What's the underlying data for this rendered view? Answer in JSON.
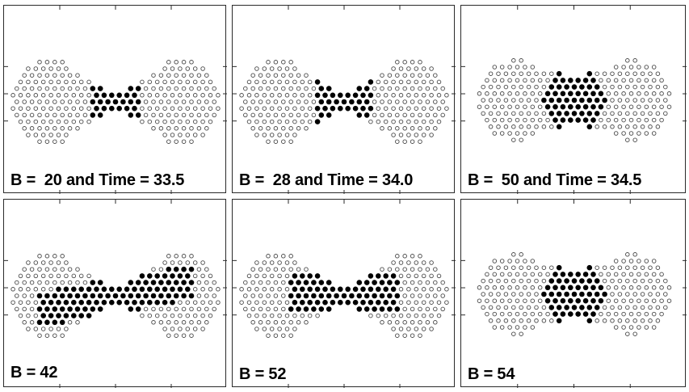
{
  "panels": [
    {
      "id": "p1",
      "caption": "B =  20 and Time = 33.5",
      "pattern": "dumbbell-wide",
      "filled_region": "neck"
    },
    {
      "id": "p2",
      "caption": "B =  28 and Time = 34.0",
      "pattern": "dumbbell-wide",
      "filled_region": "neck-cluster"
    },
    {
      "id": "p3",
      "caption": "B =  50 and Time = 34.5",
      "pattern": "peanut-narrow",
      "filled_region": "center-cluster"
    },
    {
      "id": "p4",
      "caption": "B = 42",
      "pattern": "dumbbell-wide",
      "filled_region": "diagonal-band"
    },
    {
      "id": "p5",
      "caption": "B = 52",
      "pattern": "dumbbell-wide",
      "filled_region": "center-band"
    },
    {
      "id": "p6",
      "caption": "B = 54",
      "pattern": "peanut-narrow",
      "filled_region": "center-cluster"
    }
  ],
  "colors": {
    "open_dot": "#4a4a4a",
    "filled_dot": "#000000",
    "frame": "#2a2a2a"
  }
}
